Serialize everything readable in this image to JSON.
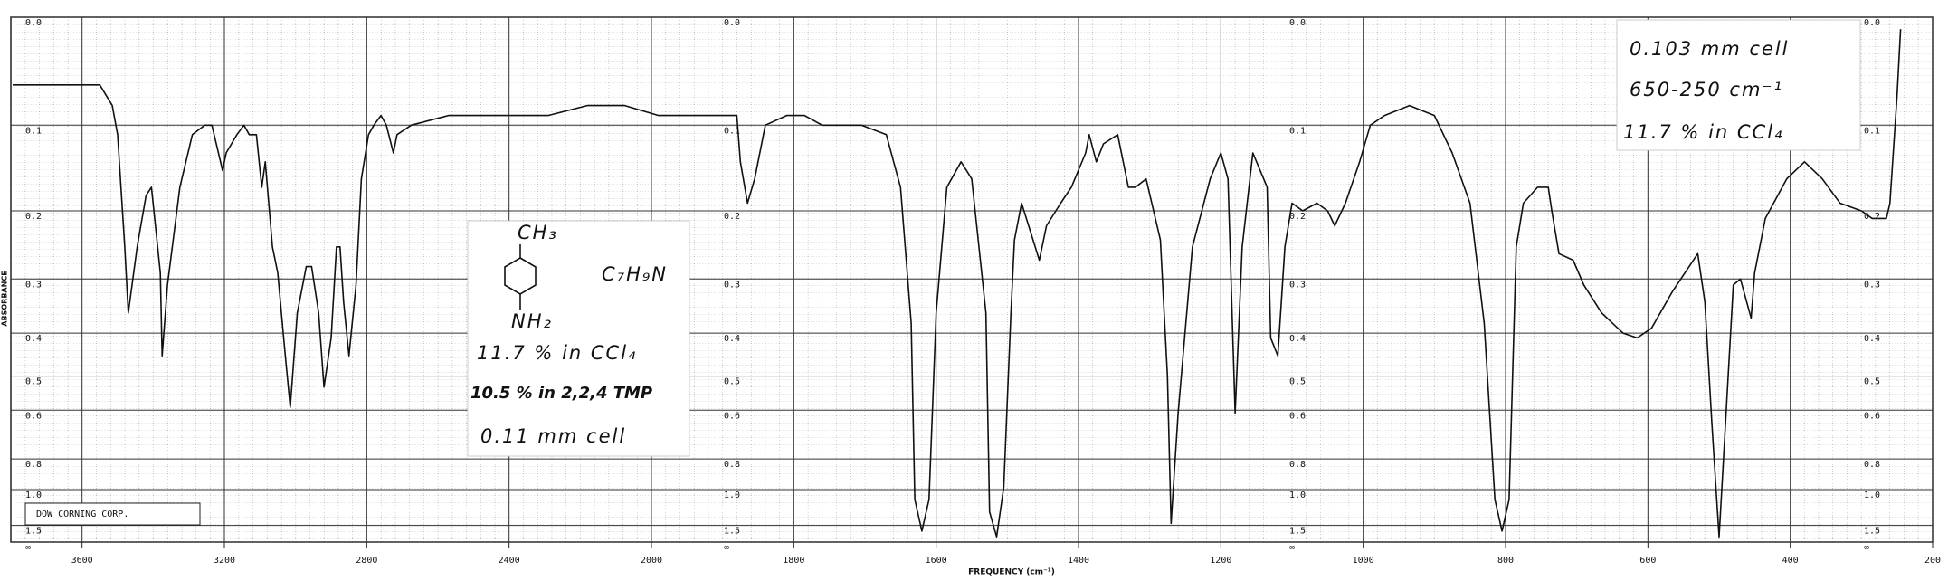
{
  "chart_data": {
    "type": "line",
    "x_label": "FREQUENCY (cm⁻¹)",
    "y_label": "ABSORBANCE",
    "y_scale": "absorbance",
    "grid": true,
    "color": "#111111",
    "xlim": [
      3800,
      200
    ],
    "xticks": [
      3600,
      3200,
      2800,
      2400,
      2000,
      1800,
      1600,
      1400,
      1200,
      1000,
      800,
      600,
      400,
      200
    ],
    "ylim": [
      0,
      null
    ],
    "yticks": [
      {
        "value": 0,
        "label": "0.0"
      },
      0.1,
      0.2,
      0.3,
      0.4,
      0.5,
      0.6,
      0.8,
      {
        "value": 1,
        "label": "1.0"
      },
      1.5,
      {
        "value": null,
        "label": "∞"
      }
    ],
    "x": [
      3795,
      3690,
      3550,
      3515,
      3500,
      3480,
      3470,
      3445,
      3420,
      3405,
      3380,
      3375,
      3360,
      3325,
      3290,
      3255,
      3235,
      3205,
      3195,
      3165,
      3145,
      3130,
      3110,
      3095,
      3085,
      3065,
      3050,
      3030,
      3015,
      2995,
      2970,
      2955,
      2935,
      2920,
      2900,
      2885,
      2875,
      2865,
      2850,
      2830,
      2815,
      2795,
      2780,
      2760,
      2745,
      2725,
      2715,
      2675,
      2570,
      2430,
      2360,
      2290,
      2180,
      2075,
      1990,
      1935,
      1880,
      1875,
      1865,
      1855,
      1840,
      1810,
      1785,
      1760,
      1705,
      1670,
      1650,
      1635,
      1630,
      1620,
      1610,
      1600,
      1585,
      1565,
      1550,
      1530,
      1525,
      1515,
      1505,
      1495,
      1490,
      1480,
      1470,
      1455,
      1445,
      1425,
      1410,
      1390,
      1385,
      1375,
      1365,
      1345,
      1330,
      1320,
      1305,
      1285,
      1275,
      1270,
      1260,
      1240,
      1215,
      1200,
      1190,
      1180,
      1170,
      1155,
      1135,
      1130,
      1120,
      1110,
      1100,
      1085,
      1065,
      1050,
      1040,
      1025,
      1005,
      990,
      970,
      935,
      900,
      875,
      850,
      830,
      815,
      805,
      795,
      785,
      775,
      755,
      740,
      735,
      725,
      705,
      690,
      665,
      635,
      615,
      595,
      565,
      530,
      520,
      510,
      500,
      495,
      480,
      470,
      455,
      450,
      435,
      405,
      380,
      355,
      330,
      300,
      285,
      265,
      260,
      250,
      245
    ],
    "values": [
      0.06,
      0.06,
      0.06,
      0.08,
      0.11,
      0.25,
      0.36,
      0.25,
      0.18,
      0.17,
      0.29,
      0.45,
      0.31,
      0.17,
      0.11,
      0.1,
      0.1,
      0.15,
      0.13,
      0.11,
      0.1,
      0.11,
      0.11,
      0.17,
      0.14,
      0.25,
      0.29,
      0.44,
      0.59,
      0.36,
      0.28,
      0.28,
      0.36,
      0.53,
      0.41,
      0.25,
      0.25,
      0.34,
      0.45,
      0.31,
      0.16,
      0.11,
      0.1,
      0.09,
      0.1,
      0.13,
      0.11,
      0.1,
      0.09,
      0.09,
      0.09,
      0.09,
      0.08,
      0.08,
      0.09,
      0.09,
      0.09,
      0.14,
      0.19,
      0.16,
      0.1,
      0.09,
      0.09,
      0.1,
      0.1,
      0.11,
      0.17,
      0.38,
      1.09,
      1.68,
      1.09,
      0.36,
      0.17,
      0.14,
      0.16,
      0.36,
      1.24,
      2.0,
      0.98,
      0.36,
      0.24,
      0.19,
      0.22,
      0.27,
      0.22,
      0.19,
      0.17,
      0.13,
      0.11,
      0.14,
      0.12,
      0.11,
      0.17,
      0.17,
      0.16,
      0.24,
      0.5,
      1.45,
      0.61,
      0.25,
      0.16,
      0.13,
      0.16,
      0.61,
      0.25,
      0.13,
      0.17,
      0.41,
      0.45,
      0.25,
      0.19,
      0.2,
      0.19,
      0.2,
      0.22,
      0.19,
      0.14,
      0.1,
      0.09,
      0.08,
      0.09,
      0.13,
      0.19,
      0.38,
      1.09,
      1.68,
      1.09,
      0.25,
      0.19,
      0.17,
      0.17,
      0.2,
      0.26,
      0.27,
      0.31,
      0.36,
      0.4,
      0.41,
      0.39,
      0.32,
      0.26,
      0.34,
      0.65,
      2.0,
      0.89,
      0.31,
      0.3,
      0.37,
      0.29,
      0.21,
      0.16,
      0.14,
      0.16,
      0.19,
      0.2,
      0.21,
      0.21,
      0.19,
      0.07,
      0.01
    ],
    "annotations": {
      "company": "DOW CORNING CORP.",
      "methyl": "CH₃",
      "amine": "NH₂",
      "formula": "C₇H₉N",
      "conc_1": "11.7 % in CCl₄",
      "conc_2": "10.5 % in 2,2,4 TMP",
      "cell_1": "0.11 mm cell",
      "cell_2": "0.103 mm cell",
      "range_2": "650-250 cm⁻¹",
      "conc_3": "11.7 % in CCl₄"
    }
  }
}
